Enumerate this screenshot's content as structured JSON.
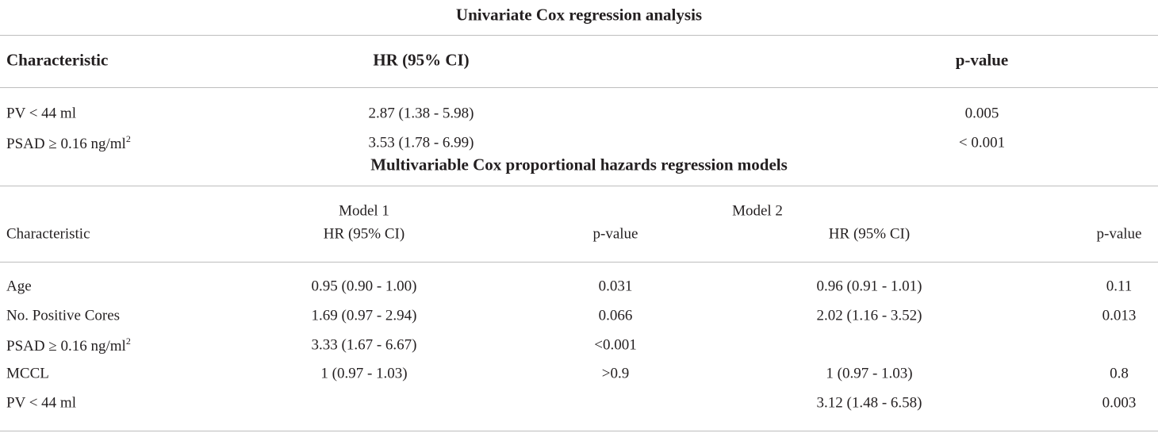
{
  "univariate": {
    "title": "Univariate Cox regression analysis",
    "columns": [
      "Characteristic",
      "HR (95% CI)",
      "p-value"
    ],
    "rows": [
      {
        "characteristic": "PV < 44 ml",
        "hr": "2.87 (1.38 - 5.98)",
        "p": "0.005"
      },
      {
        "characteristic": "PSAD ≥ 0.16 ng/ml",
        "characteristic_sup": "2",
        "hr": "3.53 (1.78 - 6.99)",
        "p": "< 0.001"
      }
    ]
  },
  "multivariable": {
    "title": "Multivariable Cox proportional hazards regression models",
    "model_headers": [
      "Model 1",
      "Model 2"
    ],
    "columns": [
      "Characteristic",
      "HR (95% CI)",
      "p-value",
      "HR (95% CI)",
      "p-value"
    ],
    "rows": [
      {
        "characteristic": "Age",
        "m1_hr": "0.95 (0.90 - 1.00)",
        "m1_p": "0.031",
        "m2_hr": "0.96 (0.91 - 1.01)",
        "m2_p": "0.11"
      },
      {
        "characteristic": "No. Positive Cores",
        "m1_hr": "1.69 (0.97 - 2.94)",
        "m1_p": "0.066",
        "m2_hr": "2.02 (1.16 - 3.52)",
        "m2_p": "0.013"
      },
      {
        "characteristic": "PSAD ≥ 0.16 ng/ml",
        "characteristic_sup": "2",
        "m1_hr": "3.33 (1.67 - 6.67)",
        "m1_p": "<0.001"
      },
      {
        "characteristic": "MCCL",
        "m1_hr": "1 (0.97 - 1.03)",
        "m1_p": ">0.9",
        "m2_hr": "1 (0.97 - 1.03)",
        "m2_p": "0.8"
      },
      {
        "characteristic": "PV < 44 ml",
        "m2_hr": "3.12 (1.48 - 6.58)",
        "m2_p": "0.003"
      }
    ]
  }
}
